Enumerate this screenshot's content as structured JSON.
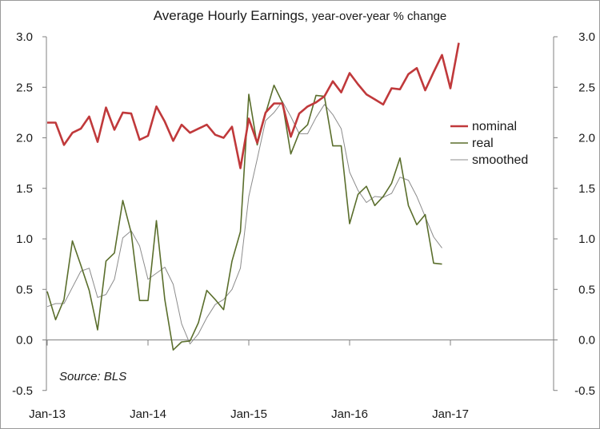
{
  "chart_data": {
    "type": "line",
    "title": "Average Hourly Earnings,",
    "subtitle": "year-over-year % change",
    "source": "Source: BLS",
    "x_start": "2013-01",
    "x_labels": [
      "Jan-13",
      "Jan-14",
      "Jan-15",
      "Jan-16",
      "Jan-17"
    ],
    "ylim": [
      -0.5,
      3.0
    ],
    "y_ticks": [
      "3.0",
      "2.5",
      "2.0",
      "1.5",
      "1.0",
      "0.5",
      "0.0",
      "-0.5"
    ],
    "y_tick_values": [
      3.0,
      2.5,
      2.0,
      1.5,
      1.0,
      0.5,
      0.0,
      -0.5
    ],
    "legend_position": "right",
    "grid": false,
    "series": [
      {
        "name": "nominal",
        "color": "#c0393b",
        "values": [
          2.15,
          2.15,
          1.93,
          2.05,
          2.09,
          2.21,
          1.96,
          2.3,
          2.08,
          2.25,
          2.24,
          1.98,
          2.02,
          2.31,
          2.16,
          1.97,
          2.13,
          2.05,
          2.09,
          2.13,
          2.03,
          2.0,
          2.11,
          1.7,
          2.19,
          1.95,
          2.25,
          2.34,
          2.34,
          2.01,
          2.24,
          2.31,
          2.35,
          2.41,
          2.56,
          2.45,
          2.64,
          2.53,
          2.43,
          2.38,
          2.33,
          2.49,
          2.48,
          2.63,
          2.69,
          2.47,
          2.65,
          2.82,
          2.49,
          2.94
        ]
      },
      {
        "name": "real",
        "color": "#5a6e2c",
        "values": [
          0.48,
          0.2,
          0.4,
          0.98,
          0.74,
          0.49,
          0.1,
          0.78,
          0.86,
          1.38,
          1.06,
          0.39,
          0.39,
          1.18,
          0.4,
          -0.1,
          -0.02,
          -0.01,
          0.17,
          0.49,
          0.4,
          0.3,
          0.78,
          1.07,
          2.43,
          1.93,
          2.24,
          2.52,
          2.35,
          1.84,
          2.05,
          2.13,
          2.42,
          2.41,
          1.92,
          1.92,
          1.15,
          1.44,
          1.52,
          1.33,
          1.42,
          1.55,
          1.8,
          1.33,
          1.14,
          1.24,
          0.76,
          0.75
        ]
      },
      {
        "name": "smoothed",
        "color": "#8c8c8c",
        "values": [
          0.33,
          0.36,
          0.36,
          0.52,
          0.68,
          0.71,
          0.42,
          0.45,
          0.6,
          1.01,
          1.08,
          0.93,
          0.6,
          0.66,
          0.72,
          0.55,
          0.16,
          -0.04,
          0.06,
          0.22,
          0.35,
          0.4,
          0.5,
          0.71,
          1.42,
          1.79,
          2.17,
          2.25,
          2.36,
          2.21,
          2.04,
          2.04,
          2.2,
          2.33,
          2.23,
          2.09,
          1.66,
          1.48,
          1.36,
          1.42,
          1.41,
          1.45,
          1.61,
          1.58,
          1.42,
          1.22,
          1.02,
          0.91
        ]
      }
    ]
  },
  "colors": {
    "axis": "#808080",
    "nominal": "#c0393b",
    "real": "#5a6e2c",
    "smoothed": "#8c8c8c"
  }
}
